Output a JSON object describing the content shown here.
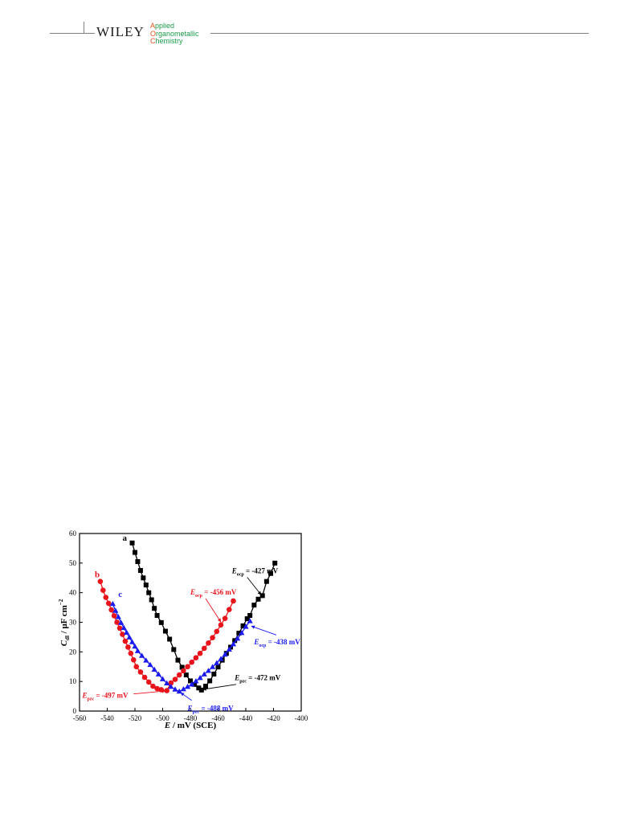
{
  "header": {
    "publisher": "WILEY",
    "journal": [
      {
        "first": "A",
        "rest": "pplied"
      },
      {
        "first": "O",
        "rest": "rganometallic"
      },
      {
        "first": "C",
        "rest": "hemistry"
      }
    ]
  },
  "colors": {
    "a": "#000000",
    "b": "#e8141c",
    "c": "#1b1bf0",
    "header_accent": "#e0541f",
    "header_green": "#1a9a4a"
  },
  "chart_data": {
    "type": "scatter",
    "xlabel_italic": "E",
    "xlabel_rest": " / mV (SCE)",
    "ylabel_italic": "C",
    "ylabel_sub": "dl",
    "ylabel_rest": " / μF cm",
    "ylabel_sup": "−2",
    "xlim": [
      -560,
      -400
    ],
    "ylim": [
      0,
      60
    ],
    "xticks": [
      -560,
      -540,
      -520,
      -500,
      -480,
      -460,
      -440,
      -420,
      -400
    ],
    "yticks": [
      0,
      10,
      20,
      30,
      40,
      50,
      60
    ],
    "series": [
      {
        "name": "a",
        "marker": "square",
        "color": "#000000",
        "x": [
          -522,
          -520,
          -518,
          -516,
          -514,
          -512,
          -510,
          -508,
          -506,
          -504,
          -501,
          -498,
          -495,
          -492,
          -489,
          -486,
          -483,
          -480,
          -477,
          -474,
          -472,
          -469,
          -466,
          -463,
          -460,
          -457,
          -454,
          -451,
          -448,
          -445,
          -442,
          -439,
          -437,
          -434,
          -431,
          -428,
          -425,
          -422,
          -419
        ],
        "y": [
          56.8,
          53.6,
          50.5,
          47.5,
          45.0,
          42.6,
          40.0,
          37.6,
          34.7,
          32.3,
          29.9,
          27.0,
          24.3,
          20.8,
          17.2,
          14.8,
          12.2,
          10.2,
          9.0,
          7.8,
          7.1,
          8.4,
          10.2,
          12.5,
          14.9,
          17.2,
          19.5,
          21.6,
          23.8,
          26.3,
          28.8,
          31.2,
          32.3,
          35.8,
          37.8,
          39.0,
          43.8,
          46.5,
          50.0
        ]
      },
      {
        "name": "b",
        "marker": "circle",
        "color": "#e8141c",
        "x": [
          -545,
          -543,
          -541,
          -539,
          -537,
          -535,
          -533,
          -531,
          -529,
          -527,
          -525,
          -523,
          -521,
          -519,
          -516,
          -513,
          -510,
          -507,
          -504,
          -501,
          -497,
          -494,
          -491,
          -488,
          -485,
          -482,
          -479,
          -476,
          -473,
          -470,
          -467,
          -464,
          -461,
          -458,
          -455,
          -452,
          -449
        ],
        "y": [
          43.8,
          40.8,
          38.4,
          36.4,
          34.2,
          32.2,
          30.0,
          28.0,
          25.9,
          23.6,
          21.6,
          19.5,
          17.3,
          15.0,
          13.2,
          11.4,
          9.8,
          8.4,
          7.6,
          7.2,
          6.9,
          9.5,
          10.7,
          12.2,
          13.6,
          15.0,
          16.5,
          18.0,
          19.5,
          21.2,
          23.0,
          24.8,
          26.9,
          29.1,
          31.3,
          34.3,
          37.2
        ]
      },
      {
        "name": "c",
        "marker": "triangle",
        "color": "#1b1bf0",
        "x": [
          -536,
          -534,
          -532,
          -530,
          -528,
          -526,
          -524,
          -522,
          -520,
          -518,
          -515,
          -512,
          -509,
          -506,
          -503,
          -500,
          -497,
          -494,
          -491,
          -488,
          -485,
          -482,
          -479,
          -476,
          -473,
          -470,
          -467,
          -464,
          -461,
          -458,
          -455,
          -452,
          -449,
          -446,
          -443,
          -440,
          -437
        ],
        "y": [
          36.2,
          33.9,
          31.8,
          29.8,
          28.1,
          26.5,
          24.9,
          23.3,
          21.8,
          20.3,
          18.7,
          17.1,
          15.6,
          14.0,
          12.4,
          10.8,
          9.4,
          8.2,
          7.3,
          6.6,
          7.4,
          8.2,
          9.0,
          10.1,
          11.2,
          12.4,
          13.6,
          14.9,
          16.2,
          17.6,
          19.1,
          20.8,
          22.6,
          24.5,
          26.4,
          28.5,
          30.4
        ]
      }
    ],
    "curve_labels": [
      {
        "text": "a",
        "x": -529,
        "y": 57.5,
        "color": "#000000"
      },
      {
        "text": "b",
        "x": -549,
        "y": 45.2,
        "color": "#e8141c"
      },
      {
        "text": "c",
        "x": -532,
        "y": 38.6,
        "color": "#1b1bf0"
      }
    ],
    "annotations": [
      {
        "italic": "E",
        "sub": "ocp",
        "rest": " = -427 mV",
        "color": "#000000",
        "tx": -450,
        "ty": 46.5,
        "ax": -439,
        "ay": 45.2,
        "px": -429,
        "py": 39.3
      },
      {
        "italic": "E",
        "sub": "ocp",
        "rest": " = -456 mV",
        "color": "#e8141c",
        "tx": -480,
        "ty": 39.3,
        "ax": -469,
        "ay": 38.0,
        "px": -458,
        "py": 30.1
      },
      {
        "italic": "E",
        "sub": "ocp",
        "rest": " = -438 mV",
        "color": "#1b1bf0",
        "tx": -434,
        "ty": 22.5,
        "ax": -418,
        "ay": 25.7,
        "px": -436,
        "py": 28.7
      },
      {
        "italic": "E",
        "sub": "pzc",
        "rest": " = -472 mV",
        "color": "#000000",
        "tx": -448,
        "ty": 10.5,
        "ax": -447,
        "ay": 9.0,
        "px": -471,
        "py": 7.3
      },
      {
        "italic": "E",
        "sub": "pzc",
        "rest": " = -497 mV",
        "color": "#e8141c",
        "tx": -558,
        "ty": 4.5,
        "ax": -521,
        "ay": 5.8,
        "px": -498,
        "py": 6.8
      },
      {
        "italic": "E",
        "sub": "pzc",
        "rest": " = -488 mV",
        "color": "#1b1bf0",
        "tx": -482,
        "ty": 0.2,
        "ax": -479,
        "ay": 3.6,
        "px": -487,
        "py": 6.2
      }
    ]
  }
}
